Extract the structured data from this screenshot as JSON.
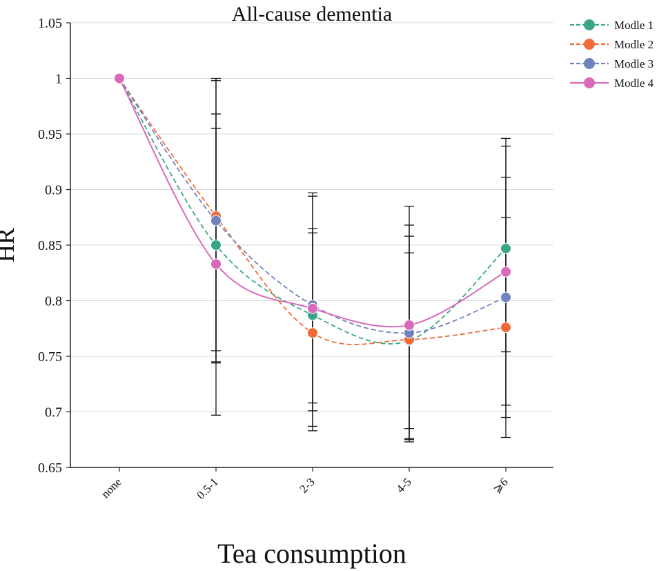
{
  "chart_data": {
    "type": "line",
    "title": "All-cause dementia",
    "xlabel": "Tea consumption",
    "ylabel": "HR",
    "categories": [
      "none",
      "0.5-1",
      "2-3",
      "4-5",
      "⩾6"
    ],
    "ylim": [
      0.65,
      1.05
    ],
    "yticks": [
      "0.65",
      "0.7",
      "0.75",
      "0.8",
      "0.85",
      "0.9",
      "0.95",
      "1",
      "1.05"
    ],
    "grid": true,
    "legend_position": "top-right",
    "series": [
      {
        "name": "Modle 1",
        "color": "#3aa688",
        "dash": "dashed",
        "values": [
          1.0,
          0.85,
          0.787,
          0.764,
          0.847
        ],
        "ci_low": [
          null,
          0.745,
          0.683,
          0.673,
          0.695
        ],
        "ci_high": [
          null,
          0.968,
          0.894,
          0.868,
          0.946
        ]
      },
      {
        "name": "Modle 2",
        "color": "#f06a37",
        "dash": "dashed",
        "values": [
          1.0,
          0.876,
          0.771,
          0.765,
          0.776
        ],
        "ci_low": [
          null,
          0.755,
          0.687,
          0.675,
          0.677
        ],
        "ci_high": [
          null,
          1.0,
          0.865,
          0.858,
          0.875
        ]
      },
      {
        "name": "Modle 3",
        "color": "#6f84be",
        "dash": "dashed",
        "values": [
          1.0,
          0.872,
          0.796,
          0.771,
          0.803
        ],
        "ci_low": [
          null,
          0.697,
          0.701,
          0.676,
          0.706
        ],
        "ci_high": [
          null,
          0.998,
          0.897,
          0.885,
          0.911
        ]
      },
      {
        "name": "Modle 4",
        "color": "#d86ab9",
        "dash": "solid",
        "values": [
          1.0,
          0.833,
          0.793,
          0.778,
          0.826
        ],
        "ci_low": [
          null,
          0.744,
          0.708,
          0.685,
          0.754
        ],
        "ci_high": [
          null,
          0.955,
          0.861,
          0.843,
          0.939
        ]
      }
    ]
  }
}
